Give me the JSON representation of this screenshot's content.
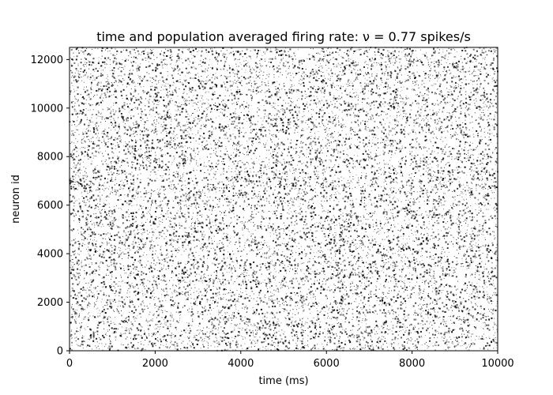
{
  "chart_data": {
    "type": "scatter",
    "title": "time and population averaged firing rate: ν = 0.77 spikes/s",
    "xlabel": "time (ms)",
    "ylabel": "neuron id",
    "xlim": [
      0,
      10000
    ],
    "ylim": [
      0,
      12500
    ],
    "x_ticks": [
      0,
      2000,
      4000,
      6000,
      8000,
      10000
    ],
    "y_ticks": [
      0,
      2000,
      4000,
      6000,
      8000,
      10000,
      12000
    ],
    "x_tick_labels": [
      "0",
      "2000",
      "4000",
      "6000",
      "8000",
      "10000"
    ],
    "y_tick_labels": [
      "0",
      "2000",
      "4000",
      "6000",
      "8000",
      "10000",
      "12000"
    ],
    "grid": false,
    "legend": "none",
    "marker_color": "#000000",
    "description_of_data": "dense raster of spike events: each point is one spike (time, neuron id); population-averaged rate ≈ 0.77 spikes/s across 12500 neurons over 10000 ms",
    "population_rate_spikes_per_s": 0.77,
    "neuron_count": 12500,
    "duration_ms": 10000
  }
}
